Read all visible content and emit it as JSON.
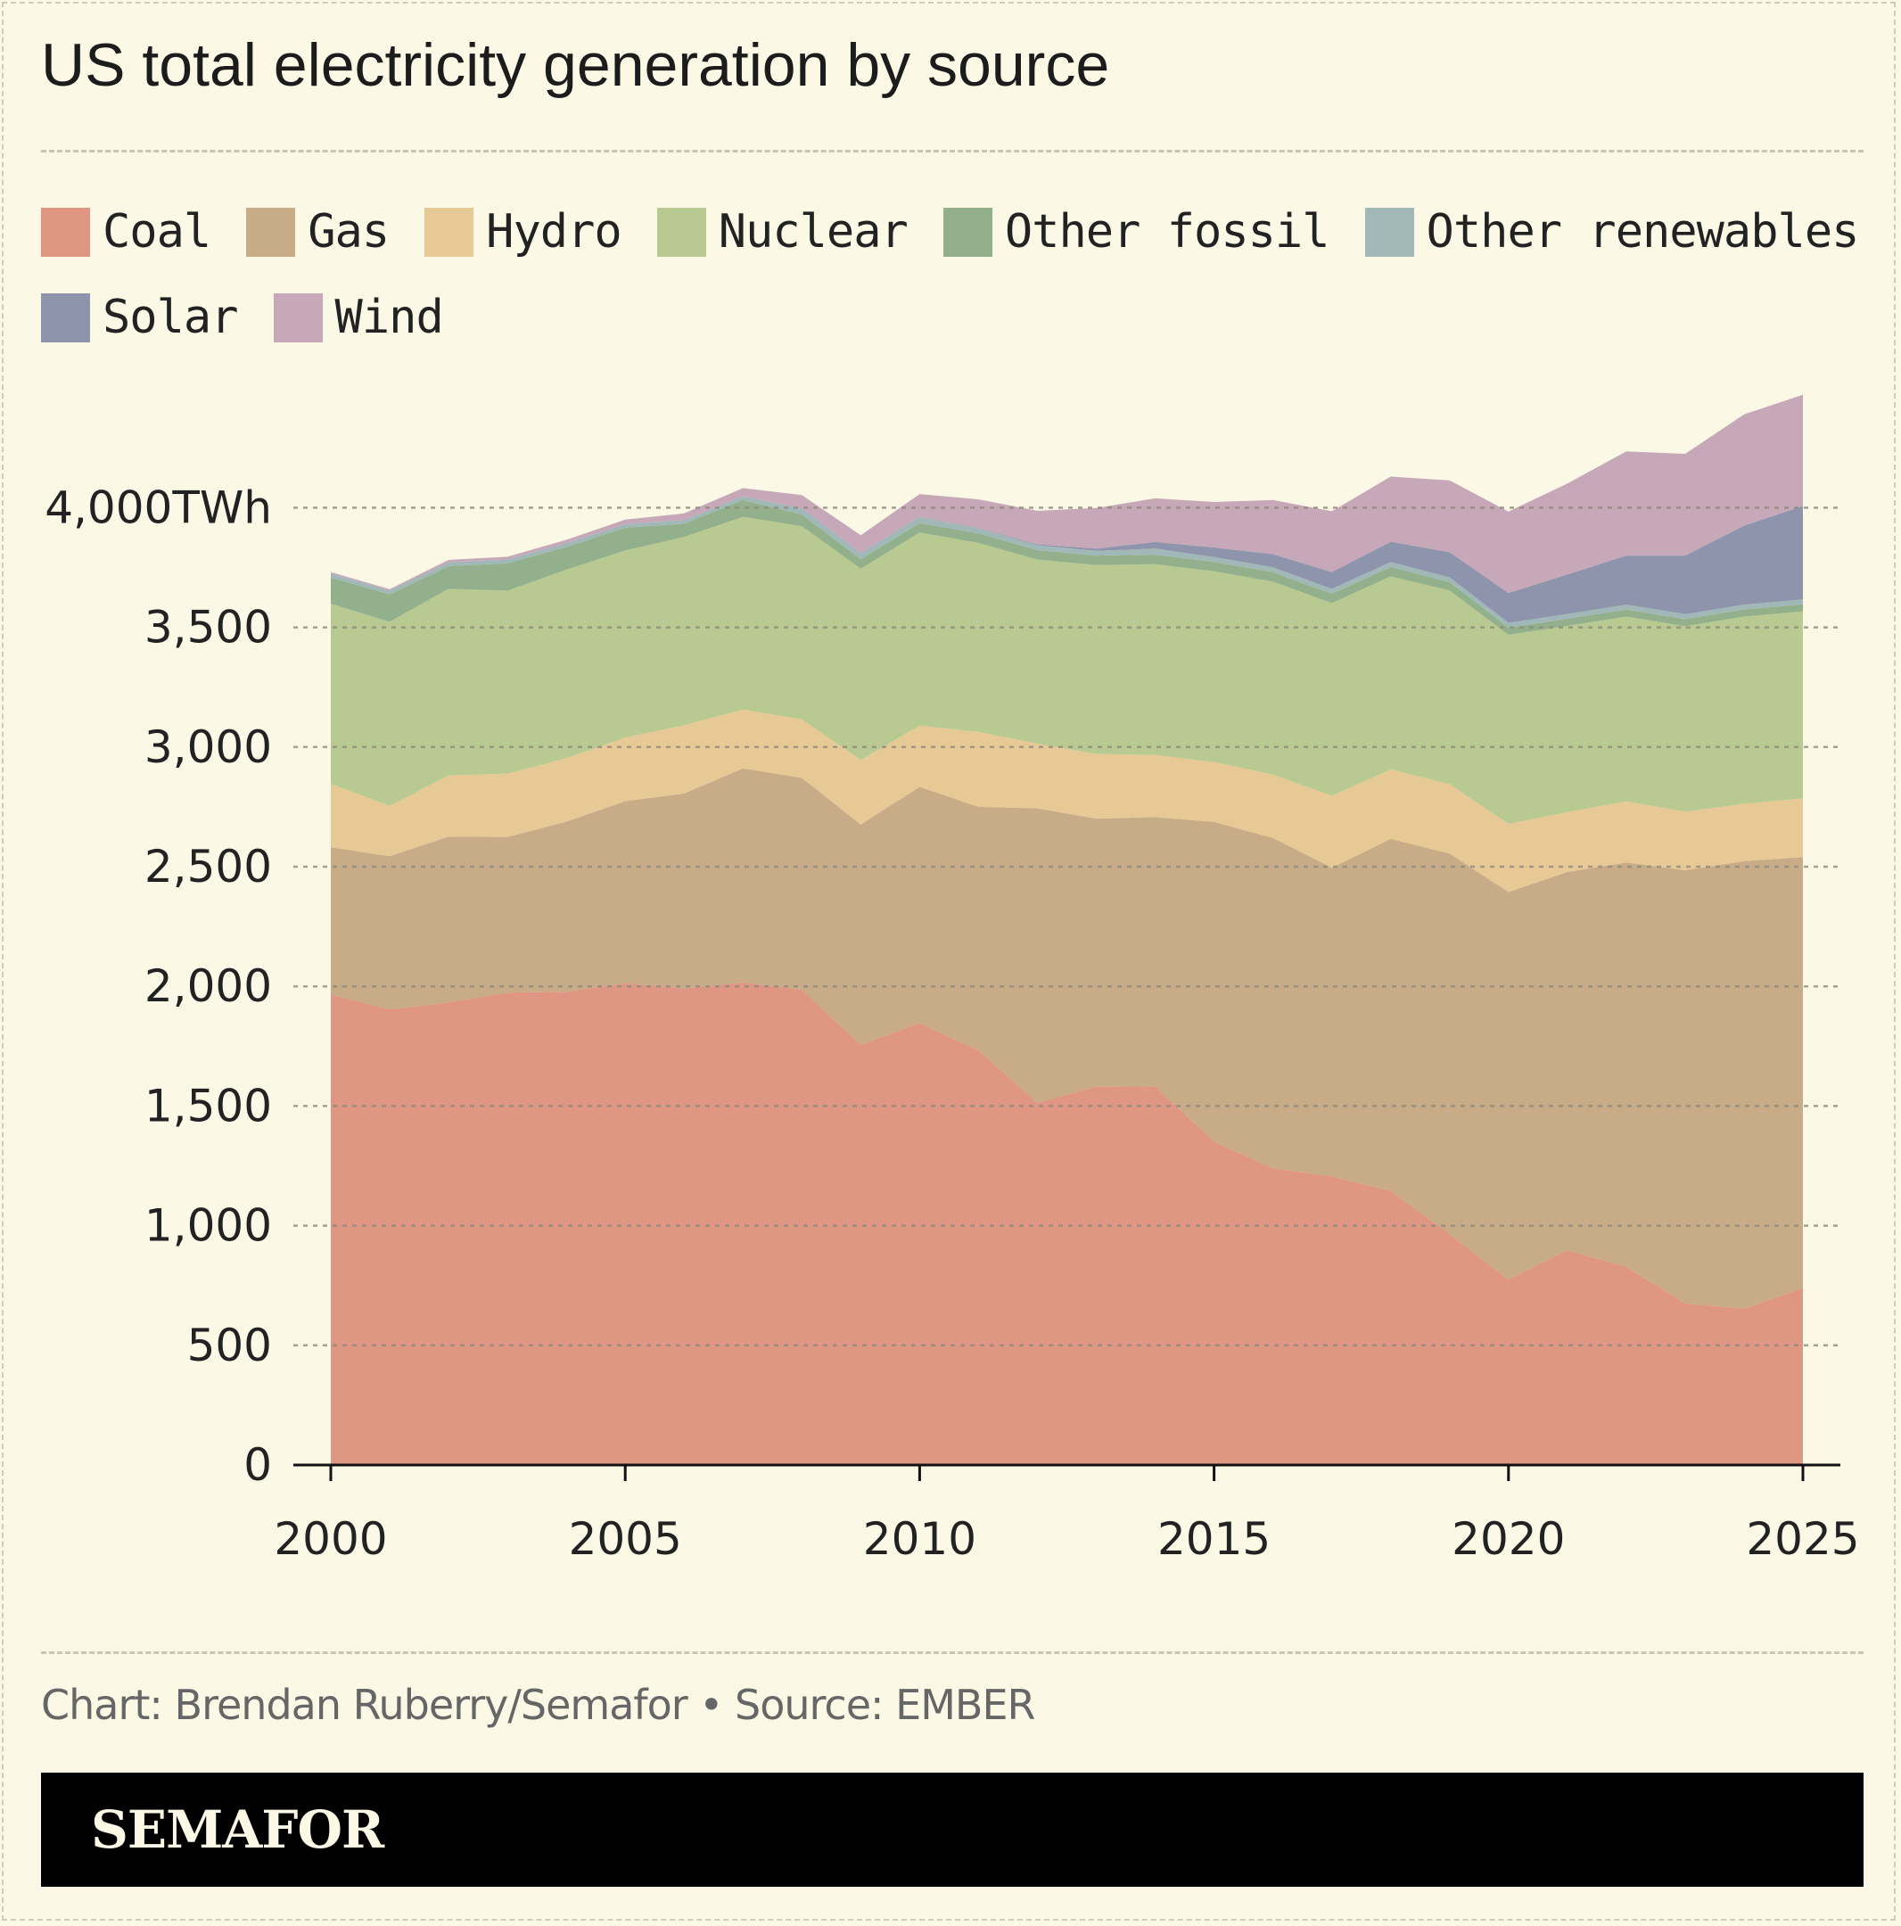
{
  "title": "US total electricity generation by source",
  "credit": "Chart: Brendan Ruberry/Semafor • Source: EMBER",
  "brand": "SEMAFOR",
  "chart_data": {
    "type": "area",
    "stacked": true,
    "title": "US total electricity generation by source",
    "unit": "TWh",
    "x": [
      2000,
      2001,
      2002,
      2003,
      2004,
      2005,
      2006,
      2007,
      2008,
      2009,
      2010,
      2011,
      2012,
      2013,
      2014,
      2015,
      2016,
      2017,
      2018,
      2019,
      2020,
      2021,
      2022,
      2023,
      2024,
      2025
    ],
    "xticks": [
      "2000",
      "2005",
      "2010",
      "2015",
      "2020",
      "2025"
    ],
    "yticks": [
      "0",
      "500",
      "1,000",
      "1,500",
      "2,000",
      "2,500",
      "3,000",
      "3,500",
      "4,000TWh"
    ],
    "ylim": [
      0,
      4500
    ],
    "grid": true,
    "legend_position": "top",
    "series": [
      {
        "name": "Coal",
        "color": "#df9683",
        "values": [
          1966,
          1904,
          1933,
          1974,
          1978,
          2013,
          1991,
          2016,
          1986,
          1756,
          1847,
          1733,
          1514,
          1581,
          1582,
          1352,
          1240,
          1206,
          1146,
          965,
          774,
          898,
          828,
          675,
          653,
          740
        ]
      },
      {
        "name": "Gas",
        "color": "#c8ab87",
        "values": [
          615,
          640,
          693,
          650,
          710,
          761,
          815,
          895,
          885,
          920,
          987,
          1017,
          1230,
          1120,
          1125,
          1335,
          1380,
          1290,
          1470,
          1590,
          1620,
          1580,
          1690,
          1810,
          1870,
          1800
        ]
      },
      {
        "name": "Hydro",
        "color": "#e7c996",
        "values": [
          265,
          210,
          255,
          265,
          265,
          265,
          285,
          245,
          245,
          270,
          255,
          313,
          270,
          270,
          260,
          250,
          265,
          300,
          290,
          290,
          285,
          250,
          255,
          245,
          240,
          245
        ]
      },
      {
        "name": "Nuclear",
        "color": "#b8c991",
        "values": [
          753,
          769,
          780,
          764,
          788,
          782,
          787,
          806,
          806,
          799,
          807,
          790,
          769,
          789,
          797,
          797,
          806,
          805,
          807,
          809,
          790,
          778,
          772,
          775,
          782,
          782
        ]
      },
      {
        "name": "Other fossil",
        "color": "#93b08c",
        "values": [
          110,
          115,
          95,
          115,
          95,
          95,
          55,
          70,
          50,
          40,
          40,
          40,
          40,
          40,
          40,
          40,
          40,
          40,
          40,
          35,
          30,
          30,
          30,
          30,
          30,
          30
        ]
      },
      {
        "name": "Other renewables",
        "color": "#a1b8b8",
        "values": [
          15,
          15,
          15,
          15,
          15,
          15,
          15,
          15,
          25,
          25,
          25,
          20,
          20,
          20,
          25,
          20,
          20,
          20,
          20,
          20,
          20,
          20,
          20,
          20,
          20,
          20
        ]
      },
      {
        "name": "Solar",
        "color": "#8e94ac",
        "values": [
          1,
          1,
          1,
          1,
          1,
          1,
          1,
          1,
          1,
          1,
          1,
          2,
          4,
          9,
          28,
          40,
          55,
          70,
          85,
          105,
          125,
          165,
          205,
          245,
          330,
          390
        ]
      },
      {
        "name": "Wind",
        "color": "#c7a8b8",
        "values": [
          6,
          6,
          10,
          11,
          14,
          18,
          27,
          34,
          55,
          74,
          95,
          120,
          140,
          170,
          182,
          190,
          226,
          254,
          272,
          300,
          340,
          380,
          435,
          425,
          465,
          465
        ]
      }
    ]
  }
}
